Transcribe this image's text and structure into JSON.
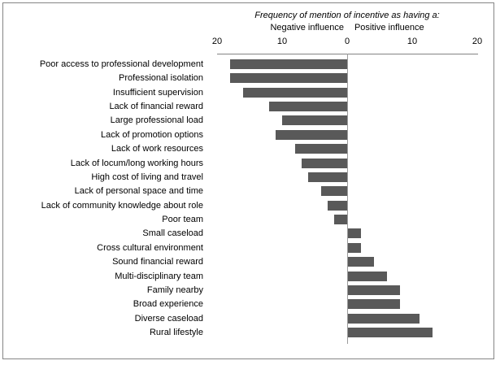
{
  "window": {
    "background": "#ffffff",
    "border_color": "#858585"
  },
  "chart_data": {
    "type": "bar",
    "orientation": "horizontal-diverging",
    "title": "Frequency of mention of incentive as having a:",
    "axis_group_labels": {
      "negative": "Negative influence",
      "positive": "Positive influence"
    },
    "axis_ticks": [
      -20,
      -10,
      0,
      10,
      20
    ],
    "axis_tick_labels": [
      "20",
      "10",
      "0",
      "10",
      "20"
    ],
    "xlim": [
      -20,
      20
    ],
    "grid": false,
    "legend_position": "none",
    "bar_color": "#595959",
    "axis_line_color": "#848484",
    "categories": [
      "Poor access to professional development",
      "Professional isolation",
      "Insufficient supervision",
      "Lack of financial reward",
      "Large professional load",
      "Lack of promotion options",
      "Lack of work resources",
      "Lack of locum/long working hours",
      "High cost of living and travel",
      "Lack of personal space and time",
      "Lack of community knowledge about role",
      "Poor team",
      "Small caseload",
      "Cross cultural environment",
      "Sound financial reward",
      "Multi-disciplinary team",
      "Family nearby",
      "Broad experience",
      "Diverse caseload",
      "Rural lifestyle"
    ],
    "values": [
      -18,
      -18,
      -16,
      -12,
      -10,
      -11,
      -8,
      -7,
      -6,
      -4,
      -3,
      -2,
      2,
      2,
      4,
      6,
      8,
      8,
      11,
      13
    ]
  }
}
